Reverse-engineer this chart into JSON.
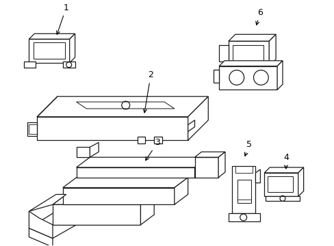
{
  "background_color": "#ffffff",
  "line_color": "#1a1a1a",
  "line_width": 0.9,
  "fig_width": 4.89,
  "fig_height": 3.6,
  "dpi": 100
}
